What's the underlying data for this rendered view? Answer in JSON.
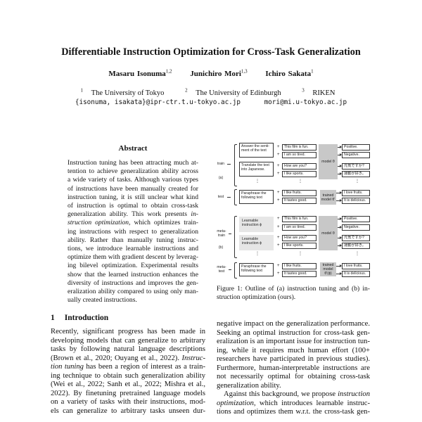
{
  "paper": {
    "title": "Differentiable Instruction Optimization for Cross-Task Generalization",
    "authors": [
      {
        "name": "Masaru Isonuma",
        "sup": "1,2"
      },
      {
        "name": "Junichiro Mori",
        "sup": "1,3"
      },
      {
        "name": "Ichiro Sakata",
        "sup": "1"
      }
    ],
    "affiliations": [
      {
        "sup": "1",
        "name": "The University of Tokyo"
      },
      {
        "sup": "2",
        "name": "The University of Edinburgh"
      },
      {
        "sup": "3",
        "name": "RIKEN"
      }
    ],
    "emails": [
      "{isonuma, isakata}@ipr-ctr.t.u-tokyo.ac.jp",
      "mori@mi.u-tokyo.ac.jp"
    ]
  },
  "abstract": {
    "heading": "Abstract",
    "lines": [
      [
        {
          "t": "Instruction tuning has been attracting much at-"
        }
      ],
      [
        {
          "t": "tention to achieve generalization ability across"
        }
      ],
      [
        {
          "t": "a wide variety of tasks. Although various types"
        }
      ],
      [
        {
          "t": "of instructions have been manually created for"
        }
      ],
      [
        {
          "t": "instruction tuning, it is still unclear what kind"
        }
      ],
      [
        {
          "t": "of instruction is optimal to obtain cross-task"
        }
      ],
      [
        {
          "t": "generalization ability. This work presents "
        },
        {
          "t": "in-",
          "em": true
        }
      ],
      [
        {
          "t": "struction optimization",
          "em": true
        },
        {
          "t": ", which optimizes train-"
        }
      ],
      [
        {
          "t": "ing instructions with respect to generalization"
        }
      ],
      [
        {
          "t": "ability. Rather than manually tuning instruc-"
        }
      ],
      [
        {
          "t": "tions, we introduce learnable instructions and"
        }
      ],
      [
        {
          "t": "optimize them with gradient descent by leverag-"
        }
      ],
      [
        {
          "t": "ing bilevel optimization. Experimental results"
        }
      ],
      [
        {
          "t": "show that the learned instruction enhances the"
        }
      ],
      [
        {
          "t": "diversity of instructions and improves the gen-"
        }
      ],
      [
        {
          "t": "eralization ability compared to using only man-"
        }
      ],
      [
        {
          "t": "ually created instructions.",
          "last": true
        }
      ]
    ]
  },
  "introduction": {
    "number": "1",
    "heading": "Introduction",
    "left_lines": [
      [
        {
          "t": "Recently, significant progress has been made in"
        }
      ],
      [
        {
          "t": "developing models that can generalize to arbitrary"
        }
      ],
      [
        {
          "t": "tasks by following natural language descriptions"
        }
      ],
      [
        {
          "t": "(Brown et al., 2020; Ouyang et al., 2022). "
        },
        {
          "t": "Instruc-",
          "em": true
        }
      ],
      [
        {
          "t": "tion tuning",
          "em": true
        },
        {
          "t": " has been a region of interest as a train-"
        }
      ],
      [
        {
          "t": "ing technique to obtain such generalization ability"
        }
      ],
      [
        {
          "t": "(Wei et al., 2022; Sanh et al., 2022; Mishra et al.,"
        }
      ],
      [
        {
          "t": "2022). By finetuning pretrained language models"
        }
      ],
      [
        {
          "t": "on a variety of tasks with their instructions, mod-"
        }
      ],
      [
        {
          "t": "els can generalize to arbitrary tasks unseen dur-"
        }
      ]
    ],
    "right_lines": [
      [
        {
          "t": "negative impact on the generalization performance."
        }
      ],
      [
        {
          "t": "Seeking an optimal instruction for cross-task gen-"
        }
      ],
      [
        {
          "t": "eralization is an important issue for instruction tun-"
        }
      ],
      [
        {
          "t": "ing, while it requires much human effort (100+"
        }
      ],
      [
        {
          "t": "researchers have participated in previous studies)."
        }
      ],
      [
        {
          "t": "Furthermore, human-interpretable instructions are"
        }
      ],
      [
        {
          "t": "not necessarily optimal for obtaining cross-task"
        }
      ],
      [
        {
          "t": "generalization ability.",
          "last": true
        }
      ],
      [
        {
          "t": "Against this background, we propose ",
          "indent": true
        },
        {
          "t": "instruction",
          "em": true
        }
      ],
      [
        {
          "t": "optimization",
          "em": true
        },
        {
          "t": ", which introduces learnable instruc-"
        }
      ],
      [
        {
          "t": "tions and optimizes them w.r.t. the cross-task gen-"
        }
      ]
    ]
  },
  "figure": {
    "caption_lines": [
      "Figure 1: Outline of (a) instruction tuning and (b) in-",
      "struction optimization (ours)."
    ],
    "a": {
      "label": "(a)",
      "train_label": "train",
      "test_label": "test",
      "instructions": [
        "Answer the senti-ment of the text",
        "Translate the text into Japanese."
      ],
      "inputs": [
        "This film is fun.",
        "I am so tired.",
        "How are you?",
        "I like sports."
      ],
      "model": "model θ",
      "outputs": [
        "Positive.",
        "Negative.",
        "元気ですか?",
        "運動が好き。"
      ],
      "test_instruction": "Paraphrase the following text",
      "test_inputs": [
        "I like fruits.",
        "It tastes good."
      ],
      "trained_model": "trained model θ'",
      "test_outputs": [
        "I love fruits.",
        "It is delicious."
      ]
    },
    "b": {
      "label": "(b)",
      "train_label": "meta-train",
      "test_label": "meta-test",
      "instructions": [
        "Learnable instruction ϕ",
        "Learnable instruction ϕ"
      ],
      "inputs": [
        "This film is fun.",
        "I am so tired.",
        "How are you?",
        "I like sports."
      ],
      "model": "model θ",
      "outputs": [
        "Positive.",
        "Negative.",
        "元気ですか?",
        "運動が好き。"
      ],
      "test_instruction": "Paraphrase the following text",
      "test_inputs": [
        "I like fruits.",
        "It tastes good."
      ],
      "trained_model": "trained model θ'(ϕ)",
      "test_outputs": [
        "I love fruits.",
        "It is delicious."
      ]
    }
  }
}
